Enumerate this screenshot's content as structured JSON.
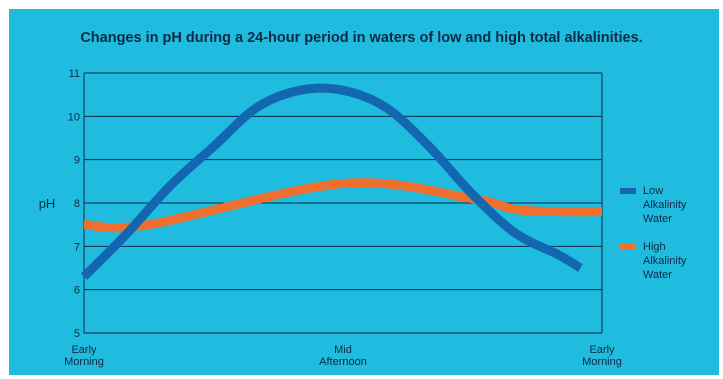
{
  "chart_data": {
    "type": "line",
    "title": "Changes in pH during a 24-hour period in waters of low and high total alkalinities.",
    "ylabel": "pH",
    "xlabel": "",
    "ylim": [
      5,
      11
    ],
    "yticks": [
      5,
      6,
      7,
      8,
      9,
      10,
      11
    ],
    "categories": [
      "Early\nMorning",
      "Mid\nAfternoon",
      "Early\nMorning"
    ],
    "x_range": [
      0,
      24
    ],
    "category_positions": [
      0,
      12,
      24
    ],
    "grid": "horizontal",
    "legend_position": "right",
    "series": [
      {
        "name": "Low Alkalinity Water",
        "legend_lines": [
          "Low",
          "Alkalinity",
          "Water"
        ],
        "color": "#1366b0",
        "x": [
          0,
          2,
          4,
          6,
          8,
          10,
          12,
          14,
          16,
          18,
          20,
          22,
          23
        ],
        "values": [
          6.3,
          7.3,
          8.4,
          9.3,
          10.2,
          10.6,
          10.6,
          10.2,
          9.3,
          8.2,
          7.3,
          6.8,
          6.5
        ]
      },
      {
        "name": "High Alkalinity Water",
        "legend_lines": [
          "High",
          "Alkalinity",
          "Water"
        ],
        "color": "#ee6f2e",
        "x": [
          0,
          3,
          12,
          18,
          20,
          22,
          24
        ],
        "values": [
          7.5,
          7.5,
          8.45,
          8.1,
          7.85,
          7.8,
          7.8
        ]
      }
    ]
  }
}
